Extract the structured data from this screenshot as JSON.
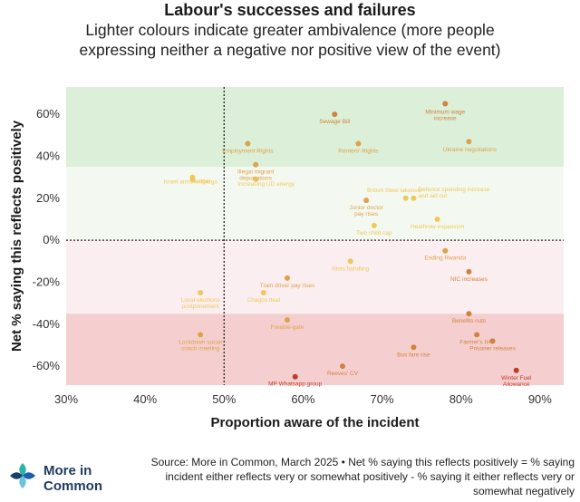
{
  "header": {
    "title": "Labour's successes and failures",
    "subtitle_line1": "Lighter colours indicate greater ambivalence (more people",
    "subtitle_line2": "expressing neither a negative nor positive view of the event)"
  },
  "source": {
    "line1": "Source: More in Common, March 2025 • Net % saying this reflects positively = % saying",
    "line2": "incident either reflects very or somewhat positively - % saying it either reflects very or",
    "line3": "somewhat negatively"
  },
  "logo": {
    "line1": "More in",
    "line2": "Common",
    "colors": [
      "#2bb5a8",
      "#1e5fa8",
      "#6cc3e0",
      "#17406b"
    ]
  },
  "chart_data": {
    "type": "scatter",
    "xlabel": "Proportion aware of the incident",
    "ylabel": "Net % saying this reflects positively",
    "xlim": [
      30,
      93
    ],
    "ylim": [
      -69,
      73
    ],
    "xticks": [
      30,
      40,
      50,
      60,
      70,
      80,
      90
    ],
    "xtick_labels": [
      "30%",
      "40%",
      "50%",
      "60%",
      "70%",
      "80%",
      "90%"
    ],
    "yticks": [
      60,
      40,
      20,
      0,
      -20,
      -40,
      -60
    ],
    "ytick_labels": [
      "60%",
      "40%",
      "20%",
      "0%",
      "-20%",
      "-40%",
      "-60%"
    ],
    "reference_lines": {
      "x": 50,
      "y": 0
    },
    "bands": [
      {
        "from": 35,
        "to": 73,
        "color": "#dcefd8"
      },
      {
        "from": 0,
        "to": 35,
        "color": "#f3f9f1"
      },
      {
        "from": -35,
        "to": 0,
        "color": "#fbeef0"
      },
      {
        "from": -69,
        "to": -35,
        "color": "#f5cfcf"
      }
    ],
    "points": [
      {
        "label": "Minimum wage increase",
        "x": 78,
        "y": 65,
        "color": "#d1823e"
      },
      {
        "label": "Sewage Bill",
        "x": 64,
        "y": 60,
        "color": "#d1823e"
      },
      {
        "label": "Ukraine negotiations",
        "x": 81,
        "y": 47,
        "color": "#dea24a"
      },
      {
        "label": "Employment Rights",
        "x": 53,
        "y": 46,
        "color": "#dea24a"
      },
      {
        "label": "Renters' Rights",
        "x": 67,
        "y": 46,
        "color": "#dea24a"
      },
      {
        "label": "Illegal migrant deportations",
        "x": 54,
        "y": 36,
        "color": "#dea24a"
      },
      {
        "label": "Israel arms embargo",
        "x": 46,
        "y": 30,
        "color": "#f0c85a"
      },
      {
        "label": "Budget",
        "x": 46,
        "y": 29,
        "color": "#f0c85a"
      },
      {
        "label": "Increasing UD energy",
        "x": 54,
        "y": 29,
        "color": "#f0c85a"
      },
      {
        "label": "British Steel takeover",
        "x": 73,
        "y": 20,
        "color": "#f0c85a"
      },
      {
        "label": "Defence spending increase and aid cut",
        "x": 74,
        "y": 20,
        "color": "#f0c85a"
      },
      {
        "label": "Junior doctor pay rises",
        "x": 68,
        "y": 19,
        "color": "#dea24a"
      },
      {
        "label": "Heathrow expansion",
        "x": 77,
        "y": 10,
        "color": "#f0c85a"
      },
      {
        "label": "Two child cap",
        "x": 69,
        "y": 7,
        "color": "#f0c85a"
      },
      {
        "label": "Ending Rwanda",
        "x": 78,
        "y": -5,
        "color": "#dea24a"
      },
      {
        "label": "Riots handling",
        "x": 66,
        "y": -10,
        "color": "#f0c85a"
      },
      {
        "label": "NIC increases",
        "x": 81,
        "y": -15,
        "color": "#d1823e"
      },
      {
        "label": "Train driver pay rises",
        "x": 58,
        "y": -18,
        "color": "#dea24a"
      },
      {
        "label": "Chagos deal",
        "x": 55,
        "y": -25,
        "color": "#f0c85a"
      },
      {
        "label": "Local elections postponement",
        "x": 47,
        "y": -25,
        "color": "#f0c85a"
      },
      {
        "label": "Benefits cuts",
        "x": 81,
        "y": -35,
        "color": "#d1823e"
      },
      {
        "label": "Freebie-gate",
        "x": 58,
        "y": -38,
        "color": "#dea24a"
      },
      {
        "label": "Lockdown social coach meeting",
        "x": 47,
        "y": -45,
        "color": "#dea24a"
      },
      {
        "label": "Farmer's IHT",
        "x": 82,
        "y": -45,
        "color": "#d1823e"
      },
      {
        "label": "Prisoner releases",
        "x": 84,
        "y": -48,
        "color": "#d1823e"
      },
      {
        "label": "Bus fare rise",
        "x": 74,
        "y": -51,
        "color": "#d1823e"
      },
      {
        "label": "Reeves' CV",
        "x": 65,
        "y": -60,
        "color": "#d1823e"
      },
      {
        "label": "Winter Fuel Allowance",
        "x": 87,
        "y": -62,
        "color": "#c0392b"
      },
      {
        "label": "MP Whatsapp group",
        "x": 59,
        "y": -65,
        "color": "#c0392b"
      }
    ]
  }
}
